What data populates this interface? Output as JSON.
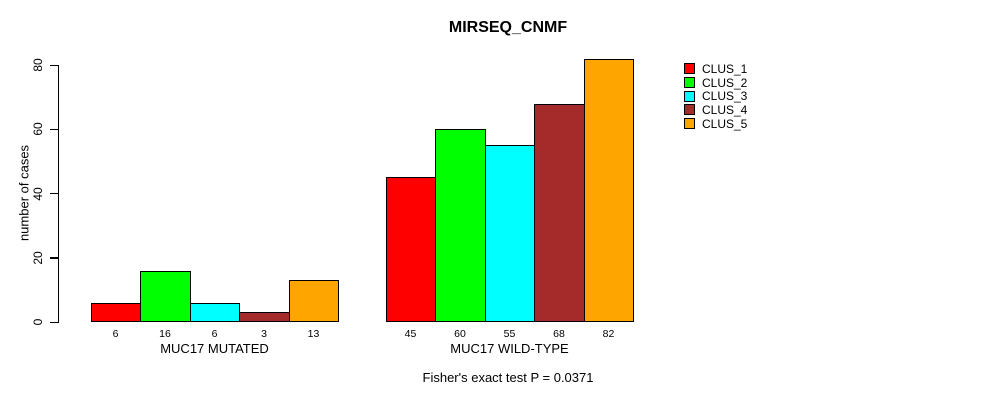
{
  "chart_data": {
    "type": "bar",
    "title": "MIRSEQ_CNMF",
    "ylabel": "number of cases",
    "xlabel": "",
    "yticks": [
      0,
      20,
      40,
      60,
      80
    ],
    "ylim": [
      0,
      82
    ],
    "grid": false,
    "legend_position": "right",
    "categories": [
      "MUC17 MUTATED",
      "MUC17 WILD-TYPE"
    ],
    "series": [
      {
        "name": "CLUS_1",
        "color": "#FF0000",
        "values": [
          6,
          45
        ]
      },
      {
        "name": "CLUS_2",
        "color": "#00FF00",
        "values": [
          16,
          60
        ]
      },
      {
        "name": "CLUS_3",
        "color": "#00FFFF",
        "values": [
          6,
          55
        ]
      },
      {
        "name": "CLUS_4",
        "color": "#A52A2A",
        "values": [
          3,
          68
        ]
      },
      {
        "name": "CLUS_5",
        "color": "#FFA500",
        "values": [
          13,
          82
        ]
      }
    ],
    "bar_value_labels": [
      [
        "6",
        "16",
        "6",
        "3",
        "13"
      ],
      [
        "45",
        "60",
        "55",
        "68",
        "82"
      ]
    ],
    "annotation": "Fisher's exact test P = 0.0371"
  },
  "colors": {
    "background": "#FFFFFF",
    "axis": "#000000",
    "text": "#000000"
  }
}
